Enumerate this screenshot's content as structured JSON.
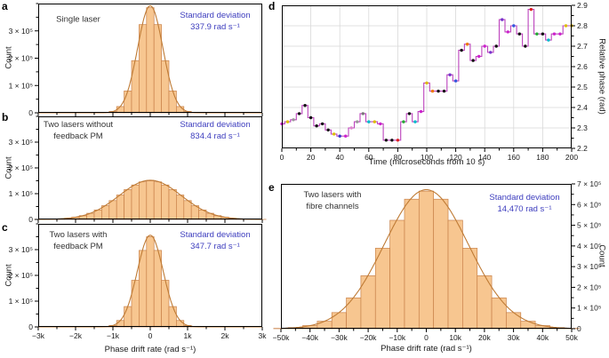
{
  "colors": {
    "bar_fill": "#f7c690",
    "bar_edge": "#c9824a",
    "fit_curve": "#bf7b35",
    "std_text": "#3d3dbe",
    "annotation_text": "#333333",
    "axis": "#000000",
    "grid": "#d9d9d9",
    "step_line": "#bc43bd",
    "tick_text": "#1a1a1a"
  },
  "chart_data": [
    {
      "id": "a",
      "type": "bar",
      "panel_label": "a",
      "annotation": "Single laser",
      "std_text": "Standard deviation\n337.9 rad s⁻¹",
      "xlabel": "",
      "ylabel": "Count",
      "xlim": [
        -3000,
        3000
      ],
      "ylim": [
        0,
        400000
      ],
      "bin_width": 200,
      "bin_centers": [
        -1200,
        -1000,
        -800,
        -600,
        -400,
        -200,
        0,
        200,
        400,
        600,
        800,
        1000,
        1200
      ],
      "counts": [
        700,
        5000,
        23000,
        80000,
        191000,
        323000,
        385000,
        323000,
        191000,
        80000,
        23000,
        5000,
        700
      ],
      "fit": {
        "sigma": 337.9,
        "amp": 392000
      },
      "x_tick_values": [
        -3000,
        -2000,
        -1000,
        0,
        1000,
        2000,
        3000
      ],
      "x_tick_labels": [
        "−3k",
        "−2k",
        "−1k",
        "0",
        "1k",
        "2k",
        "3k"
      ],
      "show_x_tick_labels": false,
      "x_minor_step": 500,
      "y_tick_values": [
        0,
        100000,
        200000,
        300000
      ],
      "y_tick_labels": [
        "0",
        "1 × 10⁵",
        "2 × 10⁵",
        "3 × 10⁵"
      ],
      "y_minor_step": 50000,
      "y_label_side": "left",
      "grid": false
    },
    {
      "id": "b",
      "type": "bar",
      "panel_label": "b",
      "annotation": "Two lasers without\nfeedback PM",
      "std_text": "Standard deviation\n834.4 rad s⁻¹",
      "xlabel": "",
      "ylabel": "Count",
      "xlim": [
        -3000,
        3000
      ],
      "ylim": [
        0,
        400000
      ],
      "bin_width": 200,
      "bin_centers": [
        -3000,
        -2800,
        -2600,
        -2400,
        -2200,
        -2000,
        -1800,
        -1600,
        -1400,
        -1200,
        -1000,
        -800,
        -600,
        -400,
        -200,
        0,
        200,
        400,
        600,
        800,
        1000,
        1200,
        1400,
        1600,
        1800,
        2000,
        2200,
        2400,
        2600,
        2800,
        3000
      ],
      "counts": [
        200,
        500,
        1200,
        2400,
        4600,
        8500,
        14700,
        23900,
        36700,
        53300,
        73100,
        94700,
        115800,
        133700,
        145800,
        150000,
        145800,
        133700,
        115800,
        94700,
        73100,
        53300,
        36700,
        23900,
        14700,
        8500,
        4600,
        2400,
        1200,
        500,
        200
      ],
      "fit": {
        "sigma": 834.4,
        "amp": 152000
      },
      "x_tick_values": [
        -3000,
        -2000,
        -1000,
        0,
        1000,
        2000,
        3000
      ],
      "x_tick_labels": [
        "−3k",
        "−2k",
        "−1k",
        "0",
        "1k",
        "2k",
        "3k"
      ],
      "show_x_tick_labels": false,
      "x_minor_step": 500,
      "y_tick_values": [
        0,
        100000,
        200000,
        300000
      ],
      "y_tick_labels": [
        "0",
        "1 × 10⁵",
        "2 × 10⁵",
        "3 × 10⁵"
      ],
      "y_minor_step": 50000,
      "y_label_side": "left",
      "grid": false
    },
    {
      "id": "c",
      "type": "bar",
      "panel_label": "c",
      "annotation": "Two lasers with\nfeedback PM",
      "std_text": "Standard deviation\n347.7 rad s⁻¹",
      "xlabel": "Phase drift rate (rad s⁻¹)",
      "ylabel": "Count",
      "xlim": [
        -3000,
        3000
      ],
      "ylim": [
        0,
        400000
      ],
      "bin_width": 200,
      "bin_centers": [
        -1200,
        -1000,
        -800,
        -600,
        -400,
        -200,
        0,
        200,
        400,
        600,
        800,
        1000,
        1200
      ],
      "counts": [
        900,
        5600,
        25000,
        79000,
        181000,
        297000,
        350000,
        297000,
        181000,
        79000,
        25000,
        5600,
        900
      ],
      "fit": {
        "sigma": 347.7,
        "amp": 356000
      },
      "x_tick_values": [
        -3000,
        -2000,
        -1000,
        0,
        1000,
        2000,
        3000
      ],
      "x_tick_labels": [
        "−3k",
        "−2k",
        "−1k",
        "0",
        "1k",
        "2k",
        "3k"
      ],
      "show_x_tick_labels": true,
      "x_minor_step": 500,
      "y_tick_values": [
        0,
        100000,
        200000,
        300000
      ],
      "y_tick_labels": [
        "0",
        "1 × 10⁵",
        "2 × 10⁵",
        "3 × 10⁵"
      ],
      "y_minor_step": 50000,
      "y_label_side": "left",
      "grid": false
    },
    {
      "id": "d",
      "type": "step",
      "panel_label": "d",
      "xlabel": "Time (microseconds from 10 s)",
      "ylabel": "Relative phase (rad)",
      "xlim": [
        0,
        200
      ],
      "ylim": [
        2.2,
        2.9
      ],
      "x": [
        0,
        4,
        8,
        12,
        16,
        20,
        24,
        28,
        32,
        36,
        40,
        44,
        48,
        52,
        56,
        60,
        64,
        68,
        72,
        76,
        80,
        84,
        88,
        92,
        96,
        100,
        104,
        108,
        112,
        116,
        120,
        124,
        128,
        132,
        136,
        140,
        144,
        148,
        152,
        156,
        160,
        164,
        168,
        172,
        176,
        180,
        184,
        188,
        192,
        196,
        200
      ],
      "y": [
        2.32,
        2.33,
        2.34,
        2.37,
        2.41,
        2.35,
        2.31,
        2.32,
        2.29,
        2.27,
        2.26,
        2.26,
        2.3,
        2.33,
        2.37,
        2.33,
        2.33,
        2.32,
        2.24,
        2.24,
        2.24,
        2.33,
        2.37,
        2.33,
        2.38,
        2.52,
        2.48,
        2.48,
        2.48,
        2.56,
        2.53,
        2.68,
        2.71,
        2.63,
        2.65,
        2.7,
        2.67,
        2.7,
        2.83,
        2.77,
        2.8,
        2.76,
        2.7,
        2.88,
        2.76,
        2.76,
        2.73,
        2.76,
        2.76,
        2.8,
        2.8
      ],
      "point_colors": [
        "#cc22cc",
        "#ddbb00",
        "#999999",
        "#111111",
        "#111111",
        "#111111",
        "#111111",
        "#111111",
        "#111111",
        "#ddbb00",
        "#3333cc",
        "#cc22cc",
        "#dd88cc",
        "#999999",
        "#777777",
        "#00bbcc",
        "#ddbb00",
        "#cc22cc",
        "#111111",
        "#111111",
        "#dd2222",
        "#22aa33",
        "#111111",
        "#00bbcc",
        "#cc22cc",
        "#ddbb00",
        "#ee7700",
        "#111111",
        "#111111",
        "#7733cc",
        "#3355dd",
        "#111111",
        "#ee7700",
        "#111111",
        "#cc22cc",
        "#cc22cc",
        "#7733cc",
        "#111111",
        "#7733cc",
        "#cc22cc",
        "#3355dd",
        "#111111",
        "#111111",
        "#dd2222",
        "#22aa33",
        "#111111",
        "#00bbcc",
        "#cc22cc",
        "#cc22cc",
        "#ddbb00",
        "#ddbb00"
      ],
      "x_tick_values": [
        0,
        20,
        40,
        60,
        80,
        100,
        120,
        140,
        160,
        180,
        200
      ],
      "x_tick_labels": [
        "0",
        "20",
        "40",
        "60",
        "80",
        "100",
        "120",
        "140",
        "160",
        "180",
        "200"
      ],
      "show_x_tick_labels": true,
      "x_minor_step": 10,
      "y_tick_values": [
        2.2,
        2.3,
        2.4,
        2.5,
        2.6,
        2.7,
        2.8,
        2.9
      ],
      "y_tick_labels": [
        "2.2",
        "2.3",
        "2.4",
        "2.5",
        "2.6",
        "2.7",
        "2.8",
        "2.9"
      ],
      "y_minor_step": 0.05,
      "y_label_side": "right",
      "grid": true
    },
    {
      "id": "e",
      "type": "bar",
      "panel_label": "e",
      "annotation": "Two lasers with\nfibre channels",
      "std_text": "Standard deviation\n14,470 rad s⁻¹",
      "xlabel": "Phase drift rate (rad s⁻¹)",
      "ylabel": "Count",
      "xlim": [
        -50000,
        50000
      ],
      "ylim": [
        0,
        700000
      ],
      "bin_width": 5000,
      "bin_centers": [
        -50000,
        -45000,
        -40000,
        -35000,
        -30000,
        -25000,
        -20000,
        -15000,
        -10000,
        -5000,
        0,
        5000,
        10000,
        15000,
        20000,
        25000,
        30000,
        35000,
        40000,
        45000,
        50000
      ],
      "counts": [
        1500,
        5300,
        15000,
        36000,
        78000,
        149000,
        256000,
        389000,
        524000,
        626000,
        665000,
        626000,
        524000,
        389000,
        256000,
        149000,
        78000,
        36000,
        15000,
        5300,
        1500
      ],
      "fit": {
        "sigma": 14470,
        "amp": 672000
      },
      "x_tick_values": [
        -50000,
        -40000,
        -30000,
        -20000,
        -10000,
        0,
        10000,
        20000,
        30000,
        40000,
        50000
      ],
      "x_tick_labels": [
        "−50k",
        "−40k",
        "−30k",
        "−20k",
        "−10k",
        "0",
        "10k",
        "20k",
        "30k",
        "40k",
        "50k"
      ],
      "show_x_tick_labels": true,
      "x_minor_step": 5000,
      "y_tick_values": [
        0,
        100000,
        200000,
        300000,
        400000,
        500000,
        600000,
        700000
      ],
      "y_tick_labels": [
        "0",
        "1 × 10⁵",
        "2 × 10⁵",
        "3 × 10⁵",
        "4 × 10⁵",
        "5 × 10⁵",
        "6 × 10⁵",
        "7 × 10⁵"
      ],
      "y_minor_step": 50000,
      "y_label_side": "right",
      "grid": false
    }
  ]
}
